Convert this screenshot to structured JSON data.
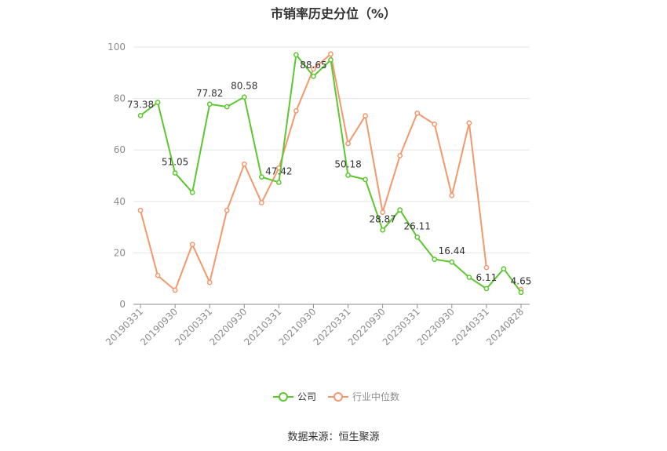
{
  "title": "市销率历史分位（%）",
  "source": "数据来源：恒生聚源",
  "colors": {
    "company": "#5cc72e",
    "industry": "#f4976c",
    "grid": "#e6e6e6",
    "axis": "#8c8c8c"
  },
  "chart_data": {
    "type": "line",
    "title": "市销率历史分位（%）",
    "ylim": [
      0,
      100
    ],
    "yticks": [
      0,
      20,
      40,
      60,
      80,
      100
    ],
    "grid": true,
    "legend_position": "bottom",
    "x_tick_labels": [
      "20190331",
      "20190930",
      "20200331",
      "20200930",
      "20210331",
      "20210930",
      "20220331",
      "20220930",
      "20230331",
      "20230930",
      "20240331",
      "20240828"
    ],
    "series": [
      {
        "name": "公司",
        "values": [
          73.38,
          78.5,
          51.05,
          43.5,
          77.82,
          76.8,
          80.58,
          49.5,
          47.42,
          97.0,
          88.65,
          95.0,
          50.18,
          48.5,
          28.87,
          36.7,
          26.11,
          17.5,
          16.44,
          10.5,
          6.11,
          13.8,
          4.65
        ]
      },
      {
        "name": "行业中位数",
        "values": [
          36.5,
          11.2,
          5.5,
          23.3,
          8.5,
          36.5,
          54.5,
          39.5,
          53.0,
          75.2,
          91.5,
          97.3,
          62.5,
          73.3,
          35.8,
          57.8,
          74.3,
          70.0,
          42.3,
          70.5,
          14.3,
          null,
          5.8
        ]
      }
    ],
    "data_labels": [
      {
        "index": 0,
        "text": "73.38"
      },
      {
        "index": 2,
        "text": "51.05"
      },
      {
        "index": 4,
        "text": "77.82"
      },
      {
        "index": 6,
        "text": "80.58"
      },
      {
        "index": 8,
        "text": "47.42"
      },
      {
        "index": 10,
        "text": "88.65"
      },
      {
        "index": 12,
        "text": "50.18"
      },
      {
        "index": 14,
        "text": "28.87"
      },
      {
        "index": 16,
        "text": "26.11"
      },
      {
        "index": 18,
        "text": "16.44"
      },
      {
        "index": 20,
        "text": "6.11"
      },
      {
        "index": 22,
        "text": "4.65"
      }
    ]
  }
}
